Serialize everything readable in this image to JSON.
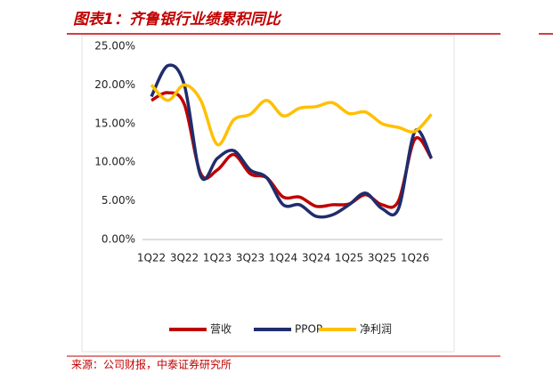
{
  "chart_data": {
    "type": "line",
    "title": "图表1：齐鲁银行业绩累积同比",
    "source": "来源：公司财报，中泰证券研究所",
    "categories": [
      "1Q22",
      null,
      "3Q22",
      null,
      "1Q23",
      null,
      "3Q23",
      null,
      "1Q24",
      null,
      "3Q24",
      null,
      "1Q25",
      null,
      "3Q25",
      null,
      "1Q26",
      null
    ],
    "series": [
      {
        "name": "营收",
        "color": "#c00000",
        "values": [
          18.0,
          19.0,
          17.5,
          8.5,
          9.0,
          11.0,
          8.5,
          8.0,
          5.5,
          5.5,
          4.3,
          4.5,
          4.6,
          5.8,
          4.5,
          5.0,
          13.0,
          10.5
        ]
      },
      {
        "name": "PPOP",
        "color": "#1f2d6e",
        "values": [
          18.5,
          22.5,
          20.0,
          8.2,
          10.5,
          11.5,
          9.0,
          8.0,
          4.5,
          4.5,
          3.0,
          3.2,
          4.5,
          6.0,
          4.0,
          4.0,
          14.0,
          10.5
        ]
      },
      {
        "name": "净利润",
        "color": "#ffc000",
        "values": [
          20.0,
          18.0,
          20.0,
          18.0,
          12.3,
          15.5,
          16.2,
          18.0,
          16.0,
          17.0,
          17.2,
          17.7,
          16.3,
          16.5,
          15.0,
          14.5,
          14.0,
          16.2
        ]
      }
    ],
    "ylim": [
      0,
      25
    ],
    "yticks": [
      {
        "value": 0,
        "label": "0.00%"
      },
      {
        "value": 5,
        "label": "5.00%"
      },
      {
        "value": 10,
        "label": "10.00%"
      },
      {
        "value": 15,
        "label": "15.00%"
      },
      {
        "value": 20,
        "label": "20.00%"
      },
      {
        "value": 25,
        "label": "25.00%"
      }
    ],
    "legend": "bottom"
  }
}
